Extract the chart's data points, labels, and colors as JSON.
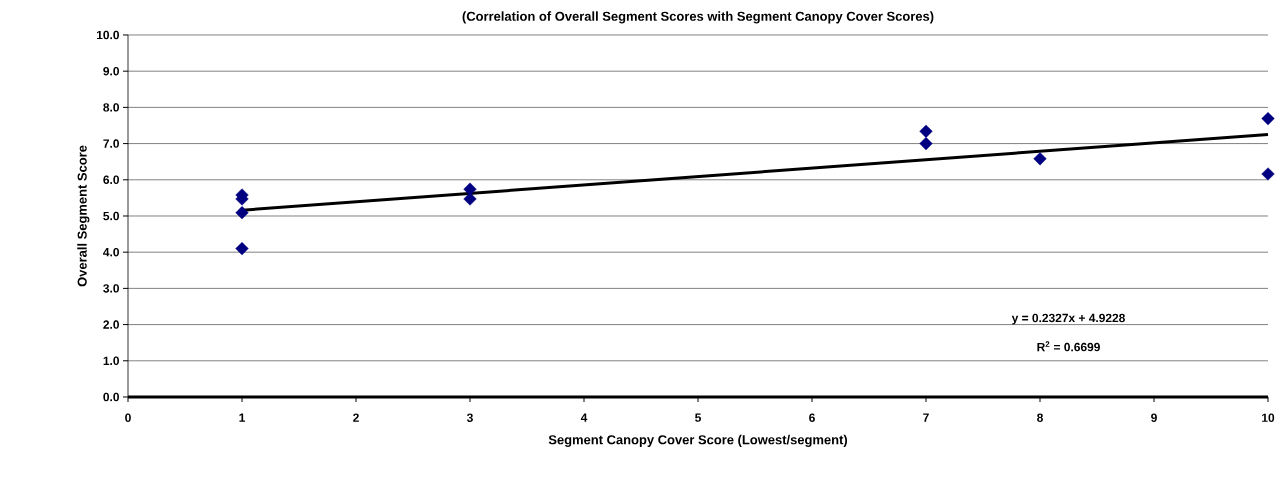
{
  "chart_data": {
    "type": "scatter",
    "title": "(Correlation of Overall Segment Scores with Segment Canopy Cover Scores)",
    "xlabel": "Segment Canopy Cover Score (Lowest/segment)",
    "ylabel": "Overall Segment Score",
    "series": [
      {
        "color": "#000080",
        "marker": "diamond",
        "x": [
          1,
          1,
          1,
          1,
          3,
          3,
          7,
          7,
          8,
          10,
          10
        ],
        "values": [
          5.58,
          5.47,
          5.09,
          4.1,
          5.74,
          5.47,
          7.34,
          7.0,
          6.58,
          7.69,
          6.16
        ]
      },
      {
        "type": "line",
        "color": "#000000",
        "marker": "none",
        "line_style": "solid",
        "x": [
          1,
          10
        ],
        "values": [
          5.16,
          7.25
        ]
      }
    ],
    "xlim": [
      0,
      10
    ],
    "xticks": [
      0,
      1,
      2,
      3,
      4,
      5,
      6,
      7,
      8,
      9,
      10
    ],
    "ylim": [
      0,
      10
    ],
    "yticks": [
      {
        "value": 0,
        "label": "0.0"
      },
      {
        "value": 1,
        "label": "1.0"
      },
      {
        "value": 2,
        "label": "2.0"
      },
      {
        "value": 3,
        "label": "3.0"
      },
      {
        "value": 4,
        "label": "4.0"
      },
      {
        "value": 5,
        "label": "5.0"
      },
      {
        "value": 6,
        "label": "6.0"
      },
      {
        "value": 7,
        "label": "7.0"
      },
      {
        "value": 8,
        "label": "8.0"
      },
      {
        "value": 9,
        "label": "9.0"
      },
      {
        "value": 10,
        "label": "10.0"
      }
    ],
    "grid": "y",
    "annotations": [
      "y = 0.2327x + 4.9228",
      "R$^{2}$ = 0.6699"
    ]
  }
}
